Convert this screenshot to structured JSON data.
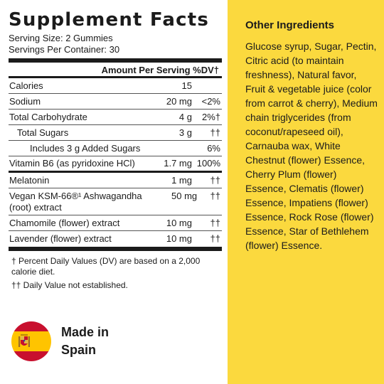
{
  "facts": {
    "title": "Supplement Facts",
    "serving_size": "Serving Size: 2 Gummies",
    "servings_per_container": "Servings Per Container: 30",
    "amount_header": "Amount Per Serving %DV†",
    "rows": [
      {
        "name": "Calories",
        "amount": "15",
        "dv": ""
      },
      {
        "name": "Sodium",
        "amount": "20 mg",
        "dv": "<2%"
      },
      {
        "name": "Total Carbohydrate",
        "amount": "4 g",
        "dv": "2%†"
      },
      {
        "name": "Total Sugars",
        "amount": "3 g",
        "dv": "††"
      },
      {
        "name": "Includes 3 g Added Sugars",
        "amount": "",
        "dv": "6%"
      },
      {
        "name": "Vitamin B6 (as pyridoxine HCl)",
        "amount": "1.7 mg",
        "dv": "100%"
      },
      {
        "name": "Melatonin",
        "amount": "1 mg",
        "dv": "††"
      },
      {
        "name": "Vegan KSM-66®¹ Ashwagandha (root) extract",
        "amount": "50 mg",
        "dv": "††"
      },
      {
        "name": "Chamomile (flower) extract",
        "amount": "10 mg",
        "dv": "††"
      },
      {
        "name": "Lavender (flower) extract",
        "amount": "10 mg",
        "dv": "††"
      }
    ],
    "footnote_1": "† Percent Daily Values (DV) are based on a 2,000 calorie diet.",
    "footnote_2": "†† Daily Value not established."
  },
  "origin": {
    "line1": "Made in",
    "line2": "Spain",
    "flag_icon": "spain-flag-icon"
  },
  "other_ingredients": {
    "title": "Other Ingredients",
    "text": "Glucose syrup, Sugar, Pectin, Citric acid (to maintain freshness), Natural favor, Fruit & vegetable juice (color from carrot & cherry), Medium chain triglycerides (from coconut/rapeseed oil), Carnauba wax, White Chestnut (flower) Essence, Cherry Plum (flower) Essence, Clematis (flower) Essence, Impatiens (flower) Essence, Rock Rose (flower) Essence, Star of Bethlehem (flower) Essence."
  },
  "colors": {
    "panel_yellow": "#fbd93e",
    "flag_red": "#c8102e",
    "flag_yellow": "#ffc400",
    "ink": "#1b1b1b"
  }
}
